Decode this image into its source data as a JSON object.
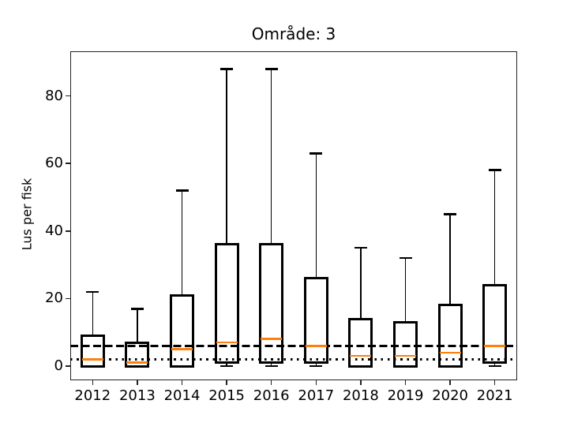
{
  "chart_data": {
    "type": "boxplot",
    "title": "Område: 3",
    "ylabel": "Lus per fisk",
    "xlabel": "",
    "categories": [
      "2012",
      "2013",
      "2014",
      "2015",
      "2016",
      "2017",
      "2018",
      "2019",
      "2020",
      "2021"
    ],
    "series": [
      {
        "year": "2012",
        "min": 0,
        "q1": 0,
        "median": 2,
        "q3": 9,
        "max": 22
      },
      {
        "year": "2013",
        "min": 0,
        "q1": 0,
        "median": 1,
        "q3": 7,
        "max": 17
      },
      {
        "year": "2014",
        "min": 0,
        "q1": 0,
        "median": 5,
        "q3": 21,
        "max": 52
      },
      {
        "year": "2015",
        "min": 0,
        "q1": 1,
        "median": 7,
        "q3": 36,
        "max": 88
      },
      {
        "year": "2016",
        "min": 0,
        "q1": 1,
        "median": 8,
        "q3": 36,
        "max": 88
      },
      {
        "year": "2017",
        "min": 0,
        "q1": 1,
        "median": 6,
        "q3": 26,
        "max": 63
      },
      {
        "year": "2018",
        "min": 0,
        "q1": 0,
        "median": 3,
        "q3": 14,
        "max": 35
      },
      {
        "year": "2019",
        "min": 0,
        "q1": 0,
        "median": 3,
        "q3": 13,
        "max": 32
      },
      {
        "year": "2020",
        "min": 0,
        "q1": 0,
        "median": 4,
        "q3": 18,
        "max": 45
      },
      {
        "year": "2021",
        "min": 0,
        "q1": 1,
        "median": 6,
        "q3": 24,
        "max": 58
      }
    ],
    "yticks": [
      0,
      20,
      40,
      60,
      80
    ],
    "ylim": [
      -4.2,
      93.2
    ],
    "reference_lines": [
      {
        "value": 6,
        "style": "dashed",
        "color": "#000000"
      },
      {
        "value": 2,
        "style": "dotted",
        "color": "#000000"
      }
    ],
    "legend": "none",
    "grid": false,
    "colors": {
      "box": "#000000",
      "median": "#ff7f0e",
      "background": "#ffffff"
    }
  }
}
